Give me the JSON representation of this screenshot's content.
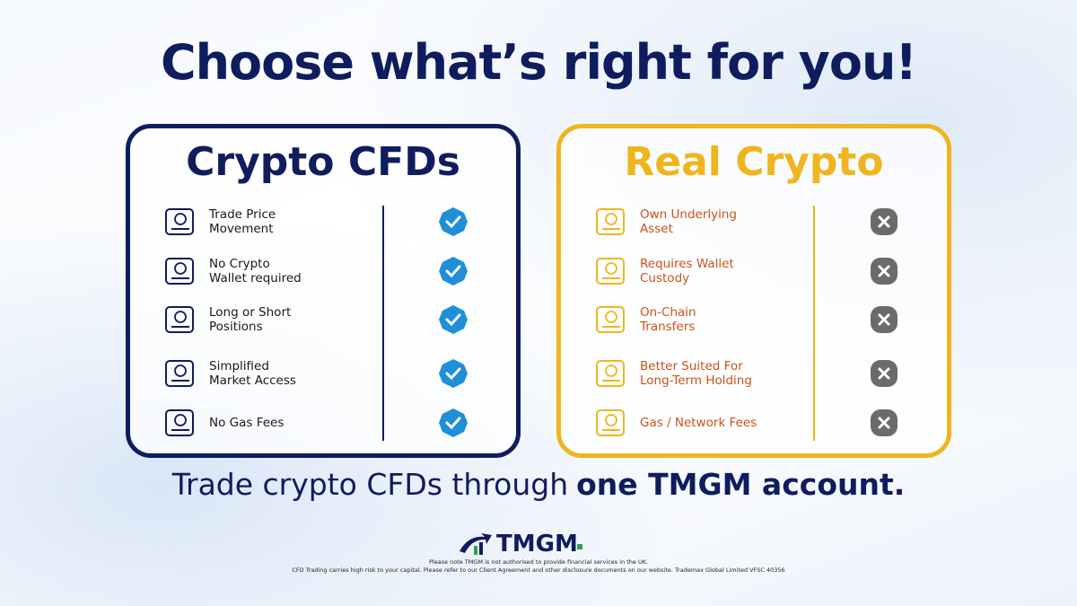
{
  "title": "Choose what’s right for you!",
  "panels": [
    {
      "title": "Crypto CFDs",
      "color": "#0f1c5e",
      "text_color": "#1a1a1a",
      "mark": "check",
      "mark_color": "#1f8fd8",
      "items": [
        {
          "lines": [
            "Trade Price",
            "Movement"
          ]
        },
        {
          "lines": [
            "No Crypto",
            "Wallet required"
          ]
        },
        {
          "lines": [
            "Long or Short",
            "Positions"
          ]
        },
        {
          "lines": [
            "Simplified",
            "Market Access"
          ]
        },
        {
          "lines": [
            "No Gas Fees"
          ]
        }
      ]
    },
    {
      "title": "Real Crypto",
      "color": "#f0b51d",
      "text_color": "#c9531b",
      "mark": "cross",
      "mark_color": "#6b6b6b",
      "items": [
        {
          "lines": [
            "Own Underlying",
            "Asset"
          ]
        },
        {
          "lines": [
            "Requires Wallet",
            "Custody"
          ]
        },
        {
          "lines": [
            "On-Chain",
            "Transfers"
          ]
        },
        {
          "lines": [
            "Better Suited For",
            "Long-Term Holding"
          ]
        },
        {
          "lines": [
            "Gas / Network Fees"
          ]
        }
      ]
    }
  ],
  "tagline": {
    "text": "Trade crypto CFDs through",
    "emphasis": "one TMGM account."
  },
  "logo": "TMGM",
  "disclaimer": [
    "Please note TMGM is not authorised to provide financial services in the UK.",
    "CFD Trading carries high risk to your capital. Please refer to our Client Agreement and other disclosure documents on our website. Trademax Global Limited VFSC 40356"
  ]
}
